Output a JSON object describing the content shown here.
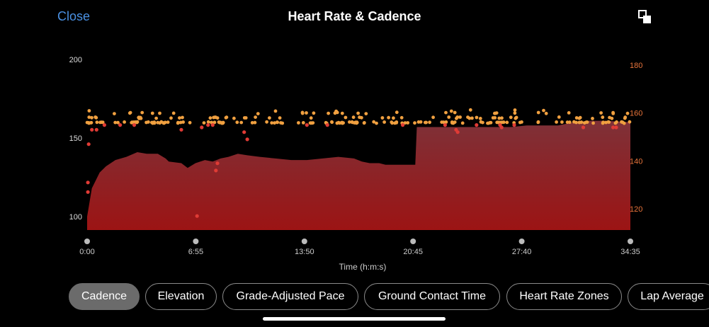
{
  "header": {
    "close_label": "Close",
    "title": "Heart Rate & Cadence",
    "expand_icon": "expand-icon"
  },
  "chart_data": {
    "type": "area+scatter",
    "title": "Heart Rate & Cadence",
    "xlabel": "Time (h:m:s)",
    "x_ticks": [
      "0:00",
      "6:55",
      "13:50",
      "20:45",
      "27:40",
      "34:35"
    ],
    "x_range_min": [
      0,
      34.6
    ],
    "left_axis": {
      "ticks": [
        200,
        150,
        100
      ],
      "range": [
        92,
        200
      ]
    },
    "right_axis": {
      "ticks": [
        180,
        160,
        140,
        120
      ],
      "range": [
        111,
        183
      ]
    },
    "heart_rate_series": {
      "name": "Heart Rate",
      "time_min": [
        0,
        0.3,
        0.8,
        1.2,
        1.8,
        2.5,
        3.2,
        3.8,
        4.5,
        5.0,
        5.2,
        6.0,
        6.4,
        6.9,
        7.5,
        8.0,
        8.5,
        9.0,
        9.6,
        10.2,
        11.0,
        12.0,
        13.0,
        14.0,
        15.0,
        16.0,
        17.0,
        17.5,
        18.0,
        18.6,
        19.0,
        20.0,
        20.9,
        21.0,
        23.0,
        25.0,
        27.0,
        28.0,
        30.0,
        31.0,
        32.0,
        33.0,
        34.6
      ],
      "bpm": [
        100,
        118,
        128,
        132,
        136,
        138,
        141,
        140,
        140,
        137,
        135,
        134,
        131,
        134,
        136,
        135,
        137,
        138,
        140,
        139,
        138,
        137,
        136,
        136,
        137,
        138,
        137,
        135,
        134,
        134,
        133,
        133,
        133,
        157,
        157,
        157,
        157,
        158,
        158,
        160,
        161,
        161,
        160
      ],
      "color": "#8a1f24"
    },
    "cadence_series": {
      "name": "Cadence",
      "level_spm": [
        156,
        161
      ],
      "color": "#f0a040"
    },
    "outlier_series": {
      "name": "Cadence outliers",
      "color": "#e03b35"
    }
  },
  "tabs": [
    {
      "label": "Cadence",
      "active": true
    },
    {
      "label": "Elevation",
      "active": false
    },
    {
      "label": "Grade-Adjusted Pace",
      "active": false
    },
    {
      "label": "Ground Contact Time",
      "active": false
    },
    {
      "label": "Heart Rate Zones",
      "active": false
    },
    {
      "label": "Lap Average",
      "active": false
    }
  ]
}
